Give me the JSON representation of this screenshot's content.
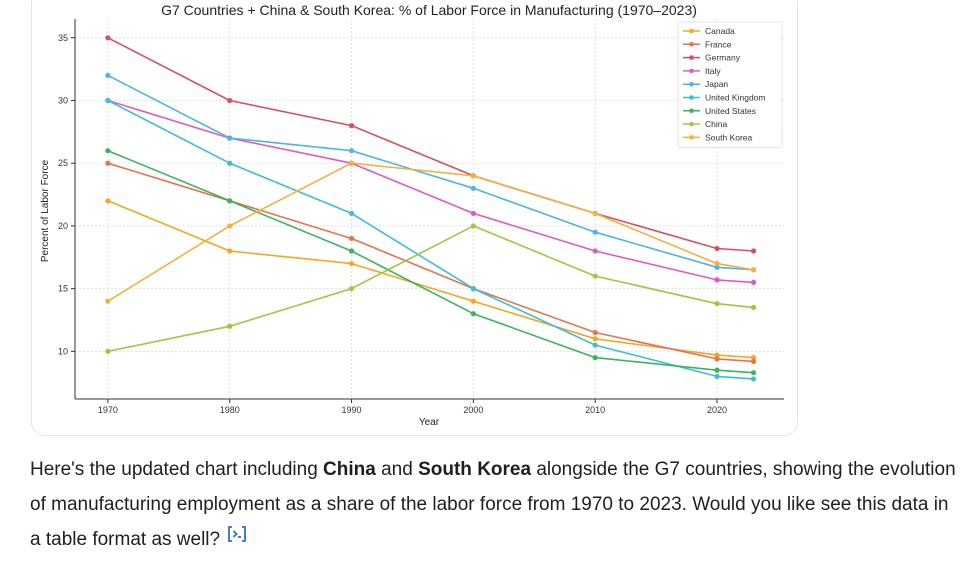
{
  "chart_data": {
    "type": "line",
    "title": "G7 Countries + China & South Korea: % of Labor Force in Manufacturing (1970–2023)",
    "xlabel": "Year",
    "ylabel": "Percent of Labor Force",
    "x": [
      1970,
      1980,
      1990,
      2000,
      2010,
      2020,
      2023
    ],
    "x_ticks": [
      1970,
      1980,
      1990,
      2000,
      2010,
      2020
    ],
    "y_ticks": [
      10,
      15,
      20,
      25,
      30,
      35
    ],
    "xlim": [
      1967.3,
      2025.5
    ],
    "ylim": [
      6.2,
      36.5
    ],
    "grid": true,
    "legend_position": "top-right",
    "series": [
      {
        "name": "Canada",
        "color": "#F5A623",
        "values": [
          22,
          18,
          17,
          14,
          11,
          9.7,
          9.5
        ]
      },
      {
        "name": "France",
        "color": "#E4734E",
        "values": [
          25,
          22,
          19,
          15,
          11.5,
          9.4,
          9.2
        ]
      },
      {
        "name": "Germany",
        "color": "#D8505E",
        "values": [
          35,
          30,
          28,
          24,
          21,
          18.2,
          18
        ]
      },
      {
        "name": "Italy",
        "color": "#DE5BC4",
        "values": [
          30,
          27,
          25,
          21,
          18,
          15.7,
          15.5
        ]
      },
      {
        "name": "Japan",
        "color": "#4FB3E8",
        "values": [
          32,
          27,
          26,
          23,
          19.5,
          16.7,
          16.5
        ]
      },
      {
        "name": "United Kingdom",
        "color": "#3DBFD1",
        "values": [
          30,
          25,
          21,
          15,
          10.5,
          8,
          7.8
        ]
      },
      {
        "name": "United States",
        "color": "#3CB35F",
        "values": [
          26,
          22,
          18,
          13,
          9.5,
          8.5,
          8.3
        ]
      },
      {
        "name": "China",
        "color": "#9BC940",
        "values": [
          10,
          12,
          15,
          20,
          16,
          13.8,
          13.5
        ]
      },
      {
        "name": "South Korea",
        "color": "#F2B03C",
        "values": [
          14,
          20,
          25,
          24,
          21,
          17,
          16.5
        ]
      }
    ]
  },
  "message": {
    "part1": "Here's the updated chart including ",
    "bold1": "China",
    "part2": " and ",
    "bold2": "South Korea",
    "part3": " alongside the G7 countries, showing the evolution of manufacturing employment as a share of the labor force from 1970 to 2023. Would you like see this data in a table format as well?",
    "code_icon": "code-toggle-icon"
  }
}
